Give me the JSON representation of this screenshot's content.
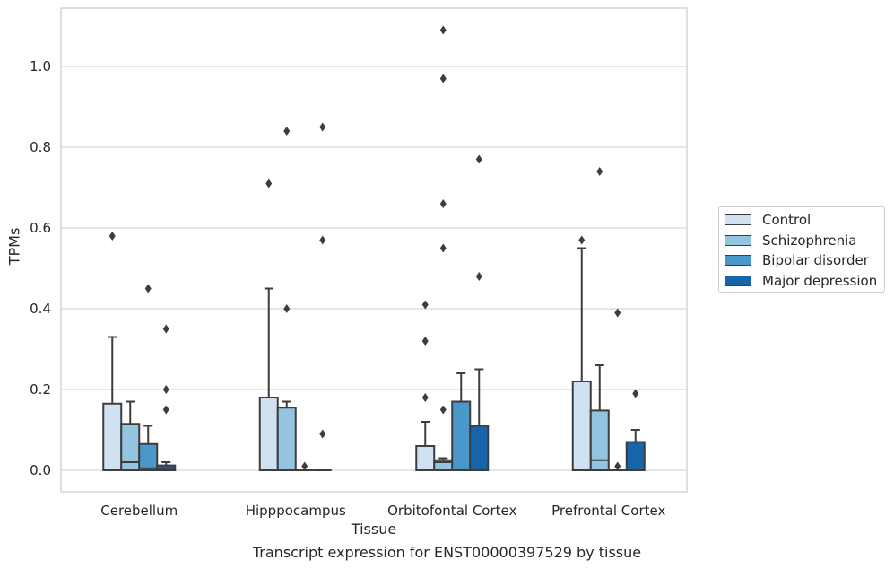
{
  "chart_data": {
    "type": "box",
    "title": "Transcript expression for ENST00000397529 by tissue",
    "xlabel": "Tissue",
    "ylabel": "TPMs",
    "ylim": [
      -0.05,
      1.15
    ],
    "yticks": [
      "0.0",
      "0.2",
      "0.4",
      "0.6",
      "0.8",
      "1.0"
    ],
    "grid": true,
    "legend_position": "right",
    "categories": [
      "Cerebellum",
      "Hipppocampus",
      "Orbitofontal Cortex",
      "Prefrontal Cortex"
    ],
    "series": [
      {
        "name": "Control",
        "color": "#d0e1f2",
        "boxes": [
          {
            "q1": 0,
            "median": 0,
            "q3": 0.165,
            "whislo": 0,
            "whishi": 0.33,
            "fliers": [
              0.58
            ]
          },
          {
            "q1": 0,
            "median": 0,
            "q3": 0.18,
            "whislo": 0,
            "whishi": 0.45,
            "fliers": [
              0.71
            ]
          },
          {
            "q1": 0,
            "median": 0,
            "q3": 0.06,
            "whislo": 0,
            "whishi": 0.12,
            "fliers": [
              0.18,
              0.32,
              0.41
            ]
          },
          {
            "q1": 0,
            "median": 0,
            "q3": 0.22,
            "whislo": 0,
            "whishi": 0.55,
            "fliers": [
              0.57
            ]
          }
        ]
      },
      {
        "name": "Schizophrenia",
        "color": "#94c4df",
        "boxes": [
          {
            "q1": 0,
            "median": 0.02,
            "q3": 0.115,
            "whislo": 0,
            "whishi": 0.17,
            "fliers": []
          },
          {
            "q1": 0,
            "median": 0,
            "q3": 0.155,
            "whislo": 0,
            "whishi": 0.17,
            "fliers": [
              0.4,
              0.84
            ]
          },
          {
            "q1": 0,
            "median": 0.02,
            "q3": 0.025,
            "whislo": 0,
            "whishi": 0.03,
            "fliers": [
              0.15,
              0.55,
              0.66,
              0.97,
              1.09
            ]
          },
          {
            "q1": 0,
            "median": 0.025,
            "q3": 0.148,
            "whislo": 0,
            "whishi": 0.26,
            "fliers": [
              0.74
            ]
          }
        ]
      },
      {
        "name": "Bipolar disorder",
        "color": "#4a98c9",
        "boxes": [
          {
            "q1": 0,
            "median": 0.005,
            "q3": 0.065,
            "whislo": 0,
            "whishi": 0.11,
            "fliers": [
              0.45
            ]
          },
          {
            "q1": 0,
            "median": 0,
            "q3": 0,
            "whislo": 0,
            "whishi": 0,
            "fliers": [
              0.01
            ]
          },
          {
            "q1": 0,
            "median": 0,
            "q3": 0.17,
            "whislo": 0,
            "whishi": 0.24,
            "fliers": []
          },
          {
            "q1": 0,
            "median": 0,
            "q3": 0,
            "whislo": 0,
            "whishi": 0,
            "fliers": [
              0.01,
              0.39
            ]
          }
        ]
      },
      {
        "name": "Major depression",
        "color": "#1764ab",
        "boxes": [
          {
            "q1": 0,
            "median": 0.005,
            "q3": 0.012,
            "whislo": 0,
            "whishi": 0.02,
            "fliers": [
              0.15,
              0.2,
              0.35
            ]
          },
          {
            "q1": 0,
            "median": 0,
            "q3": 0,
            "whislo": 0,
            "whishi": 0,
            "fliers": [
              0.09,
              0.57,
              0.85
            ]
          },
          {
            "q1": 0,
            "median": 0,
            "q3": 0.11,
            "whislo": 0,
            "whishi": 0.25,
            "fliers": [
              0.48,
              0.77
            ]
          },
          {
            "q1": 0,
            "median": 0,
            "q3": 0.07,
            "whislo": 0,
            "whishi": 0.1,
            "fliers": [
              0.19
            ]
          }
        ]
      }
    ]
  }
}
